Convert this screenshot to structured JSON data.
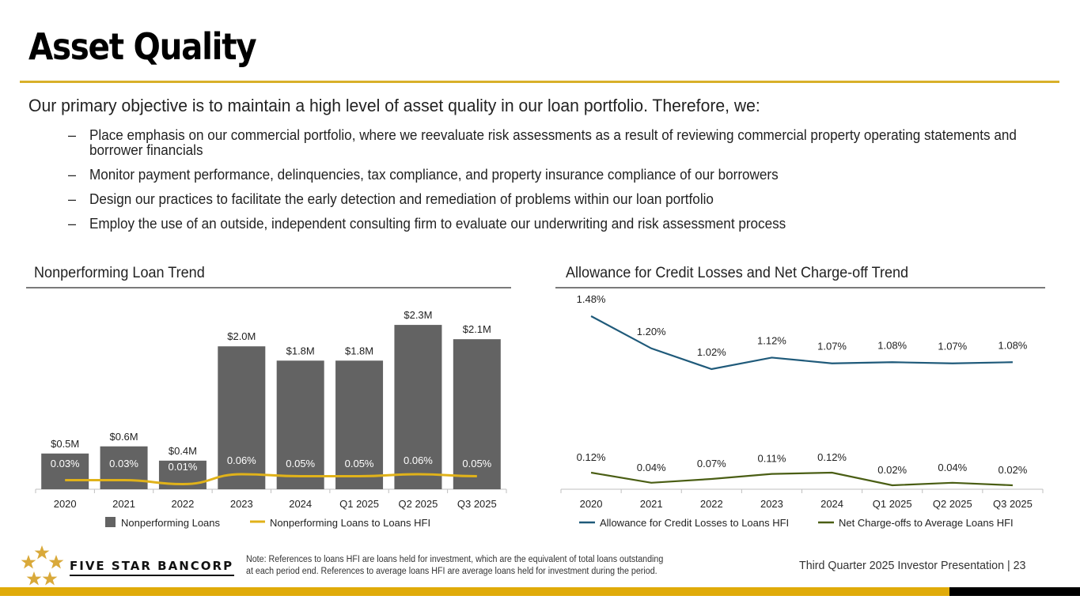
{
  "slide": {
    "title": "Asset Quality",
    "intro": "Our primary objective is to maintain a high level of asset quality in our loan portfolio. Therefore, we:",
    "bullet_marker": "–",
    "bullets": [
      "Place emphasis on our commercial portfolio, where we reevaluate risk assessments as a result of reviewing commercial property operating statements and borrower financials",
      "Monitor payment performance, delinquencies, tax compliance, and property insurance compliance of our borrowers",
      "Design our practices to facilitate the early detection and remediation of problems within our loan portfolio",
      "Employ the use of an outside, independent consulting firm to evaluate our underwriting and risk assessment process"
    ]
  },
  "colors": {
    "gold": "#d8b02a",
    "bar_gray": "#636363",
    "npl_line": "#e0b21a",
    "acl_line": "#1f5a7a",
    "nco_line": "#4a5e14",
    "black": "#000000"
  },
  "chart_data": [
    {
      "type": "bar",
      "title": "Nonperforming Loan Trend",
      "categories": [
        "2020",
        "2021",
        "2022",
        "2023",
        "2024",
        "Q1 2025",
        "Q2 2025",
        "Q3 2025"
      ],
      "series": [
        {
          "name": "Nonperforming Loans",
          "type": "bar",
          "values": [
            0.5,
            0.6,
            0.4,
            2.0,
            1.8,
            1.8,
            2.3,
            2.1
          ],
          "labels": [
            "$0.5M",
            "$0.6M",
            "$0.4M",
            "$2.0M",
            "$1.8M",
            "$1.8M",
            "$2.3M",
            "$2.1M"
          ],
          "unit": "$M"
        },
        {
          "name": "Nonperforming Loans to Loans HFI",
          "type": "line",
          "values": [
            0.03,
            0.03,
            0.01,
            0.06,
            0.05,
            0.05,
            0.06,
            0.05
          ],
          "labels": [
            "0.03%",
            "0.03%",
            "0.01%",
            "0.06%",
            "0.05%",
            "0.05%",
            "0.06%",
            "0.05%"
          ],
          "unit": "%"
        }
      ],
      "ylim": [
        0,
        2.5
      ],
      "grid": false,
      "legend": "bottom"
    },
    {
      "type": "line",
      "title": "Allowance for Credit Losses and Net Charge-off Trend",
      "categories": [
        "2020",
        "2021",
        "2022",
        "2023",
        "2024",
        "Q1 2025",
        "Q2 2025",
        "Q3 2025"
      ],
      "series": [
        {
          "name": "Allowance for Credit Losses to Loans HFI",
          "values": [
            1.48,
            1.2,
            1.02,
            1.12,
            1.07,
            1.08,
            1.07,
            1.08
          ],
          "labels": [
            "1.48%",
            "1.20%",
            "1.02%",
            "1.12%",
            "1.07%",
            "1.08%",
            "1.07%",
            "1.08%"
          ],
          "unit": "%"
        },
        {
          "name": "Net Charge-offs to Average Loans HFI",
          "values": [
            0.12,
            0.04,
            0.07,
            0.11,
            0.12,
            0.02,
            0.04,
            0.02
          ],
          "labels": [
            "0.12%",
            "0.04%",
            "0.07%",
            "0.11%",
            "0.12%",
            "0.02%",
            "0.04%",
            "0.02%"
          ],
          "unit": "%"
        }
      ],
      "grid": false,
      "legend": "bottom"
    }
  ],
  "footer": {
    "logo_text": "FIVE STAR BANCORP",
    "note_line1": "Note: References to loans HFI are loans held for investment, which are the equivalent of total loans outstanding",
    "note_line2": "at each period end. References to average loans HFI are average loans held for investment during the period.",
    "presentation": "Third Quarter 2025 Investor Presentation |  23"
  }
}
